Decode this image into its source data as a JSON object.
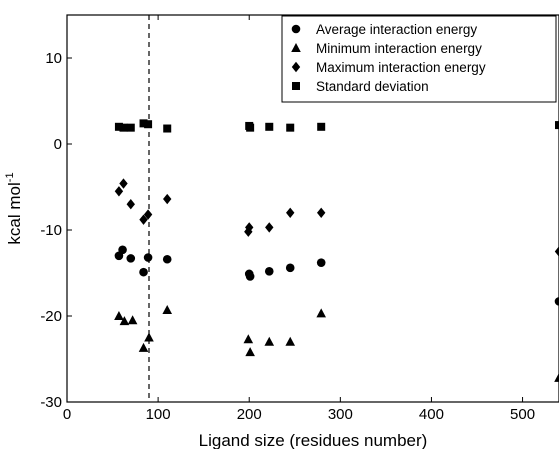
{
  "chart_data": {
    "type": "scatter",
    "xlabel": "Ligand size (residues number)",
    "ylabel": "kcal mol",
    "ylabel_superscript": "-1",
    "xlim": [
      0,
      540
    ],
    "ylim": [
      -30,
      15
    ],
    "xticks": [
      0,
      100,
      200,
      300,
      400,
      500
    ],
    "yticks": [
      -30,
      -20,
      -10,
      0,
      10
    ],
    "reference_line_x": 90,
    "legend_position": "top-right",
    "series": [
      {
        "name": "Average interaction energy",
        "marker": "circle",
        "points": [
          [
            57,
            -13
          ],
          [
            61,
            -12.3
          ],
          [
            70,
            -13.3
          ],
          [
            84,
            -14.9
          ],
          [
            89,
            -13.2
          ],
          [
            110,
            -13.4
          ],
          [
            200,
            -15.1
          ],
          [
            201,
            -15.4
          ],
          [
            222,
            -14.8
          ],
          [
            245,
            -14.4
          ],
          [
            279,
            -13.8
          ],
          [
            540,
            -18.3
          ]
        ]
      },
      {
        "name": "Minimum interaction energy",
        "marker": "triangle",
        "points": [
          [
            57,
            -20
          ],
          [
            63,
            -20.6
          ],
          [
            72,
            -20.5
          ],
          [
            84,
            -23.7
          ],
          [
            90,
            -22.5
          ],
          [
            110,
            -19.3
          ],
          [
            199,
            -22.7
          ],
          [
            201,
            -24.2
          ],
          [
            222,
            -23
          ],
          [
            245,
            -23
          ],
          [
            279,
            -19.7
          ],
          [
            540,
            -27.2
          ]
        ]
      },
      {
        "name": "Maximum interaction energy",
        "marker": "diamond",
        "points": [
          [
            57,
            -5.5
          ],
          [
            62,
            -4.6
          ],
          [
            70,
            -7
          ],
          [
            84,
            -8.8
          ],
          [
            89,
            -8.2
          ],
          [
            110,
            -6.4
          ],
          [
            199,
            -10.2
          ],
          [
            200,
            -9.7
          ],
          [
            222,
            -9.7
          ],
          [
            245,
            -8
          ],
          [
            279,
            -8
          ],
          [
            540,
            -12.5
          ]
        ]
      },
      {
        "name": "Standard deviation",
        "marker": "square",
        "points": [
          [
            57,
            2
          ],
          [
            62,
            1.9
          ],
          [
            70,
            1.9
          ],
          [
            84,
            2.4
          ],
          [
            89,
            2.3
          ],
          [
            110,
            1.8
          ],
          [
            200,
            2.1
          ],
          [
            201,
            1.9
          ],
          [
            222,
            2
          ],
          [
            245,
            1.9
          ],
          [
            279,
            2
          ],
          [
            540,
            2.2
          ]
        ]
      }
    ]
  }
}
